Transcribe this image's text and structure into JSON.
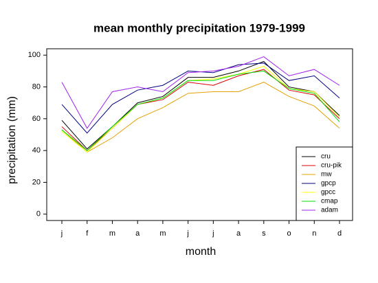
{
  "chart_data": {
    "type": "line",
    "title": "mean monthly precipitation 1979-1999",
    "xlabel": "month",
    "ylabel": "precipitation (mm)",
    "categories": [
      "j",
      "f",
      "m",
      "a",
      "m",
      "j",
      "j",
      "a",
      "s",
      "o",
      "n",
      "d"
    ],
    "series": [
      {
        "name": "cru",
        "color": "#000000",
        "values": [
          59,
          41,
          55,
          70,
          74,
          86,
          86,
          90,
          96,
          80,
          77,
          62
        ]
      },
      {
        "name": "cru-pik",
        "color": "#dd0000",
        "values": [
          55,
          40,
          54,
          69,
          72,
          83,
          81,
          87,
          91,
          78,
          75,
          60
        ]
      },
      {
        "name": "mw",
        "color": "#e6a000",
        "values": [
          53,
          39,
          48,
          60,
          67,
          76,
          77,
          77,
          83,
          74,
          68,
          54
        ]
      },
      {
        "name": "gpcp",
        "color": "#000080",
        "values": [
          69,
          51,
          69,
          78,
          81,
          90,
          89,
          94,
          95,
          84,
          87,
          73
        ]
      },
      {
        "name": "gpcc",
        "color": "#ffff00",
        "values": [
          52,
          39,
          54,
          69,
          73,
          84,
          85,
          88,
          93,
          79,
          77,
          61
        ]
      },
      {
        "name": "cmap",
        "color": "#00dd00",
        "values": [
          53,
          40,
          55,
          69,
          73,
          84,
          84,
          88,
          90,
          79,
          76,
          58
        ]
      },
      {
        "name": "adam",
        "color": "#a020f0",
        "values": [
          83,
          54,
          77,
          80,
          77,
          89,
          90,
          93,
          99,
          87,
          91,
          81
        ]
      }
    ],
    "ylim": [
      -4,
      104
    ],
    "yticks": [
      0,
      20,
      40,
      60,
      80,
      100
    ],
    "grid": false,
    "legend": "bottom-right"
  }
}
